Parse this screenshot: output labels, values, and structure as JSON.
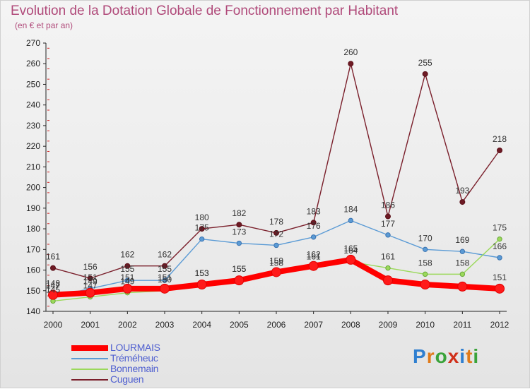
{
  "header": {
    "title": "Evolution de la Dotation Globale de Fonctionnement par Habitant",
    "subtitle": "(en € et par an)"
  },
  "logo": {
    "text": "Proxiti"
  },
  "chart_data": {
    "type": "line",
    "title": "Evolution de la Dotation Globale de Fonctionnement par Habitant",
    "subtitle": "(en € et par an)",
    "xlabel": "",
    "ylabel": "",
    "ylim": [
      140,
      270
    ],
    "yticks": [
      140,
      150,
      160,
      170,
      180,
      190,
      200,
      210,
      220,
      230,
      240,
      250,
      260,
      270
    ],
    "grid": false,
    "legend_position": "bottom-left",
    "categories": [
      "2000",
      "2001",
      "2002",
      "2003",
      "2004",
      "2005",
      "2006",
      "2007",
      "2008",
      "2009",
      "2010",
      "2011",
      "2012"
    ],
    "series": [
      {
        "name": "LOURMAIS",
        "color": "#ff0000",
        "values": [
          148,
          149,
          151,
          151,
          153,
          155,
          159,
          162,
          165,
          155,
          153,
          152,
          151
        ],
        "labels": [
          "148",
          "149",
          "151",
          "151",
          "153",
          "155",
          "159",
          "162",
          "165",
          "",
          "",
          "",
          "151"
        ]
      },
      {
        "name": "Tréméheuc",
        "color": "#5b9bd5",
        "values": [
          147,
          151,
          155,
          155,
          175,
          173,
          172,
          176,
          184,
          177,
          170,
          169,
          166
        ],
        "labels": [
          "147",
          "151",
          "155",
          "155",
          "175",
          "173",
          "172",
          "176",
          "184",
          "177",
          "170",
          "169",
          "166"
        ]
      },
      {
        "name": "Bonnemain",
        "color": "#9bd95b",
        "values": [
          145,
          147,
          149,
          150,
          153,
          155,
          158,
          161,
          164,
          161,
          158,
          158,
          175
        ],
        "labels": [
          "145",
          "147",
          "149",
          "150",
          "153",
          "155",
          "158",
          "161",
          "164",
          "161",
          "158",
          "158",
          "175"
        ]
      },
      {
        "name": "Cuguen",
        "color": "#7a1f2b",
        "values": [
          161,
          156,
          162,
          162,
          180,
          182,
          178,
          183,
          260,
          186,
          255,
          193,
          218
        ],
        "labels": [
          "161",
          "156",
          "162",
          "162",
          "180",
          "182",
          "178",
          "183",
          "260",
          "186",
          "255",
          "193",
          "218"
        ]
      }
    ]
  }
}
